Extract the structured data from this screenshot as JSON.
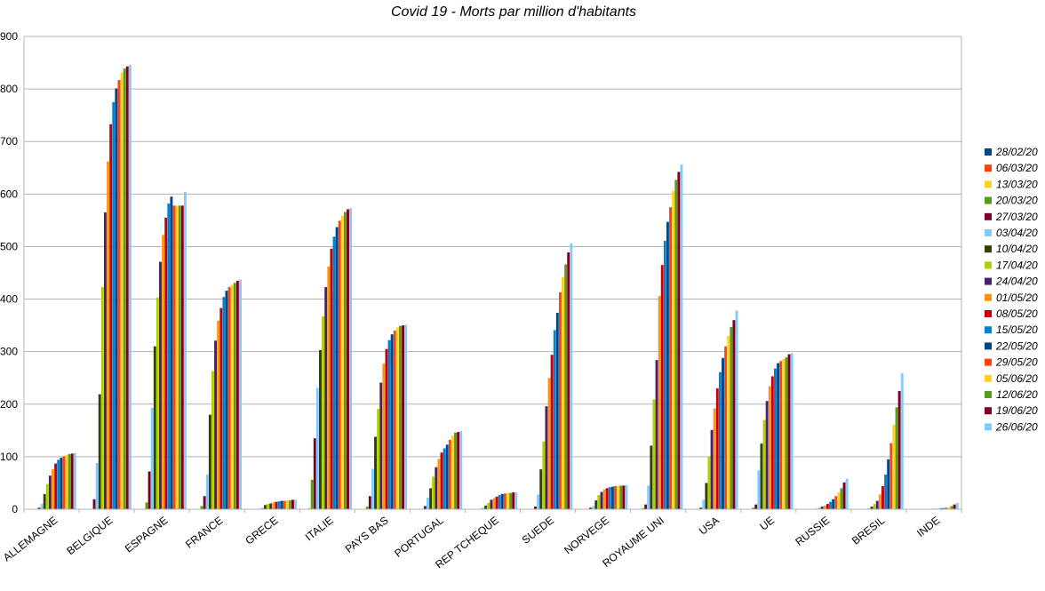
{
  "chart_data": {
    "type": "bar",
    "title": "Covid 19 - Morts par million d'habitants",
    "ylim": [
      0,
      900
    ],
    "yticks": [
      0,
      100,
      200,
      300,
      400,
      500,
      600,
      700,
      800,
      900
    ],
    "grid": true,
    "legend_position": "right",
    "categories": [
      "ALLEMAGNE",
      "BELGIQUE",
      "ESPAGNE",
      "FRANCE",
      "GRECE",
      "ITALIE",
      "PAYS BAS",
      "PORTUGAL",
      "REP TCHEQUE",
      "SUEDE",
      "NORVEGE",
      "ROYAUME UNI",
      "USA",
      "UE",
      "RUSSIE",
      "BRESIL",
      "INDE"
    ],
    "series": [
      {
        "name": "28/02/20",
        "color": "#004586",
        "values": [
          0,
          0,
          0,
          0,
          0,
          0,
          0,
          0,
          0,
          0,
          0,
          0,
          0,
          0,
          0,
          0,
          0
        ]
      },
      {
        "name": "06/03/20",
        "color": "#ff420e",
        "values": [
          0,
          0,
          0,
          0,
          0,
          0,
          0,
          0,
          0,
          0,
          0,
          0,
          0,
          0,
          0,
          0,
          0
        ]
      },
      {
        "name": "13/03/20",
        "color": "#ffd320",
        "values": [
          0,
          0,
          1,
          1,
          0,
          3,
          1,
          0,
          0,
          0,
          0,
          0,
          0,
          0,
          0,
          0,
          0
        ]
      },
      {
        "name": "20/03/20",
        "color": "#579d1c",
        "values": [
          1,
          1,
          13,
          6,
          0,
          56,
          5,
          1,
          0,
          1,
          1,
          2,
          1,
          3,
          0,
          0,
          0
        ]
      },
      {
        "name": "27/03/20",
        "color": "#7e0021",
        "values": [
          3,
          19,
          72,
          25,
          1,
          135,
          25,
          6,
          1,
          5,
          3,
          9,
          3,
          9,
          0,
          0,
          0
        ]
      },
      {
        "name": "03/04/20",
        "color": "#83caff",
        "values": [
          10,
          88,
          193,
          66,
          3,
          231,
          77,
          22,
          3,
          28,
          6,
          45,
          18,
          74,
          0,
          2,
          0
        ]
      },
      {
        "name": "10/04/20",
        "color": "#314004",
        "values": [
          29,
          219,
          310,
          180,
          8,
          303,
          138,
          40,
          7,
          76,
          17,
          121,
          50,
          125,
          1,
          5,
          0
        ]
      },
      {
        "name": "17/04/20",
        "color": "#aecf00",
        "values": [
          48,
          423,
          403,
          263,
          10,
          367,
          191,
          62,
          12,
          129,
          27,
          209,
          100,
          170,
          3,
          10,
          0
        ]
      },
      {
        "name": "24/04/20",
        "color": "#4b1f6f",
        "values": [
          64,
          565,
          471,
          321,
          11,
          423,
          241,
          80,
          18,
          196,
          33,
          284,
          151,
          206,
          5,
          16,
          1
        ]
      },
      {
        "name": "01/05/20",
        "color": "#ff950e",
        "values": [
          76,
          662,
          522,
          359,
          13,
          462,
          277,
          96,
          21,
          250,
          38,
          406,
          192,
          234,
          7,
          28,
          1
        ]
      },
      {
        "name": "08/05/20",
        "color": "#c5000b",
        "values": [
          87,
          733,
          555,
          383,
          14,
          496,
          305,
          108,
          24,
          294,
          40,
          465,
          230,
          253,
          10,
          44,
          1
        ]
      },
      {
        "name": "15/05/20",
        "color": "#0084d1",
        "values": [
          94,
          775,
          582,
          404,
          15,
          519,
          322,
          116,
          27,
          341,
          42,
          511,
          261,
          268,
          14,
          66,
          2
        ]
      },
      {
        "name": "22/05/20",
        "color": "#004586",
        "values": [
          98,
          801,
          595,
          416,
          16,
          537,
          333,
          123,
          29,
          374,
          43,
          547,
          288,
          278,
          19,
          95,
          2
        ]
      },
      {
        "name": "29/05/20",
        "color": "#ff420e",
        "values": [
          101,
          817,
          578,
          423,
          16,
          549,
          340,
          132,
          30,
          413,
          44,
          575,
          310,
          282,
          25,
          126,
          3
        ]
      },
      {
        "name": "05/06/20",
        "color": "#ffd320",
        "values": [
          103,
          831,
          578,
          427,
          17,
          559,
          346,
          140,
          31,
          442,
          44,
          606,
          330,
          286,
          32,
          161,
          4
        ]
      },
      {
        "name": "12/06/20",
        "color": "#579d1c",
        "values": [
          105,
          839,
          578,
          431,
          17,
          566,
          349,
          146,
          31,
          466,
          45,
          627,
          347,
          289,
          40,
          194,
          6
        ]
      },
      {
        "name": "19/06/20",
        "color": "#7e0021",
        "values": [
          106,
          843,
          578,
          435,
          18,
          571,
          350,
          147,
          32,
          489,
          45,
          642,
          360,
          295,
          51,
          225,
          9
        ]
      },
      {
        "name": "26/06/20",
        "color": "#83caff",
        "values": [
          107,
          846,
          604,
          437,
          18,
          573,
          351,
          149,
          32,
          506,
          46,
          656,
          378,
          297,
          58,
          259,
          12
        ]
      }
    ]
  }
}
